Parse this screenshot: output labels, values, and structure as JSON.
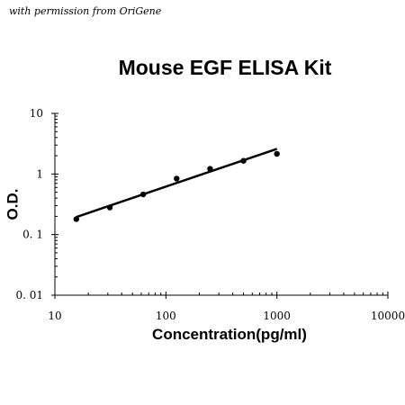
{
  "credit": "with permission from OriGene",
  "chart_data": {
    "type": "scatter",
    "title": "Mouse EGF ELISA Kit",
    "xlabel": "Concentration(pg/ml)",
    "ylabel": "O.D.",
    "x_scale": "log",
    "y_scale": "log",
    "xlim": [
      10,
      10000
    ],
    "ylim": [
      0.01,
      10
    ],
    "x_tick_labels": [
      "10",
      "100",
      "1000",
      "10000"
    ],
    "x_tick_values": [
      10,
      100,
      1000,
      10000
    ],
    "y_tick_labels": [
      "0. 01",
      "0. 1",
      "1",
      "10"
    ],
    "y_tick_values": [
      0.01,
      0.1,
      1,
      10
    ],
    "grid": false,
    "series": [
      {
        "x": [
          15.6,
          31.25,
          62.5,
          125,
          250,
          500,
          1000
        ],
        "y": [
          0.18,
          0.28,
          0.46,
          0.84,
          1.22,
          1.65,
          2.15
        ]
      }
    ],
    "fit_line": {
      "x": [
        15.6,
        1000
      ],
      "y": [
        0.195,
        2.6
      ]
    },
    "colors": {
      "marker": "#000000",
      "line": "#000000",
      "axis": "#000000"
    }
  }
}
